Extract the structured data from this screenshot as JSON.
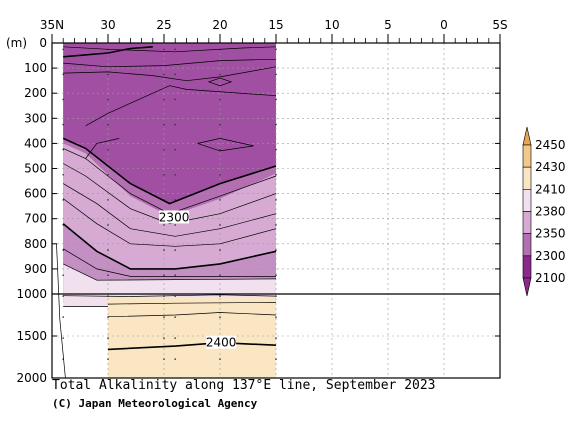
{
  "chart_data": {
    "type": "contour",
    "title": "Total Alkalinity along 137°E line, September 2023",
    "credit": "(C) Japan Meteorological Agency",
    "ylabel": "(m)",
    "xlim": [
      35,
      -5
    ],
    "x_ticks": [
      {
        "value": 35,
        "label": "35N"
      },
      {
        "value": 30,
        "label": "30"
      },
      {
        "value": 25,
        "label": "25"
      },
      {
        "value": 20,
        "label": "20"
      },
      {
        "value": 15,
        "label": "15"
      },
      {
        "value": 10,
        "label": "10"
      },
      {
        "value": 5,
        "label": "5"
      },
      {
        "value": 0,
        "label": "0"
      },
      {
        "value": -5,
        "label": "5S"
      }
    ],
    "y_ticks_upper": [
      0,
      100,
      200,
      300,
      400,
      500,
      600,
      700,
      800,
      900,
      1000
    ],
    "y_ticks_lower": [
      1500,
      2000
    ],
    "y_tick_labels": [
      "0",
      "100",
      "200",
      "300",
      "400",
      "500",
      "600",
      "700",
      "800",
      "900",
      "1000",
      "1500",
      "2000"
    ],
    "depth_break": 1000,
    "grid": true,
    "legend": {
      "placement": "right",
      "levels": [
        "2450",
        "2430",
        "2410",
        "2380",
        "2350",
        "2300",
        "2100"
      ],
      "colors": [
        "#e8a552",
        "#f3c98a",
        "#fbe6c4",
        "#f1e0ee",
        "#d6aad3",
        "#b46fb3",
        "#8a2a8c"
      ]
    },
    "contour_labels": [
      {
        "lat": 24.1,
        "depth": 695,
        "value": "2300"
      },
      {
        "lat": 19.9,
        "depth": 1580,
        "value": "2400"
      }
    ],
    "section_extent": {
      "lat_from": 34,
      "lat_to": 15
    },
    "stations": [
      34,
      30,
      25,
      24,
      20,
      15
    ]
  }
}
